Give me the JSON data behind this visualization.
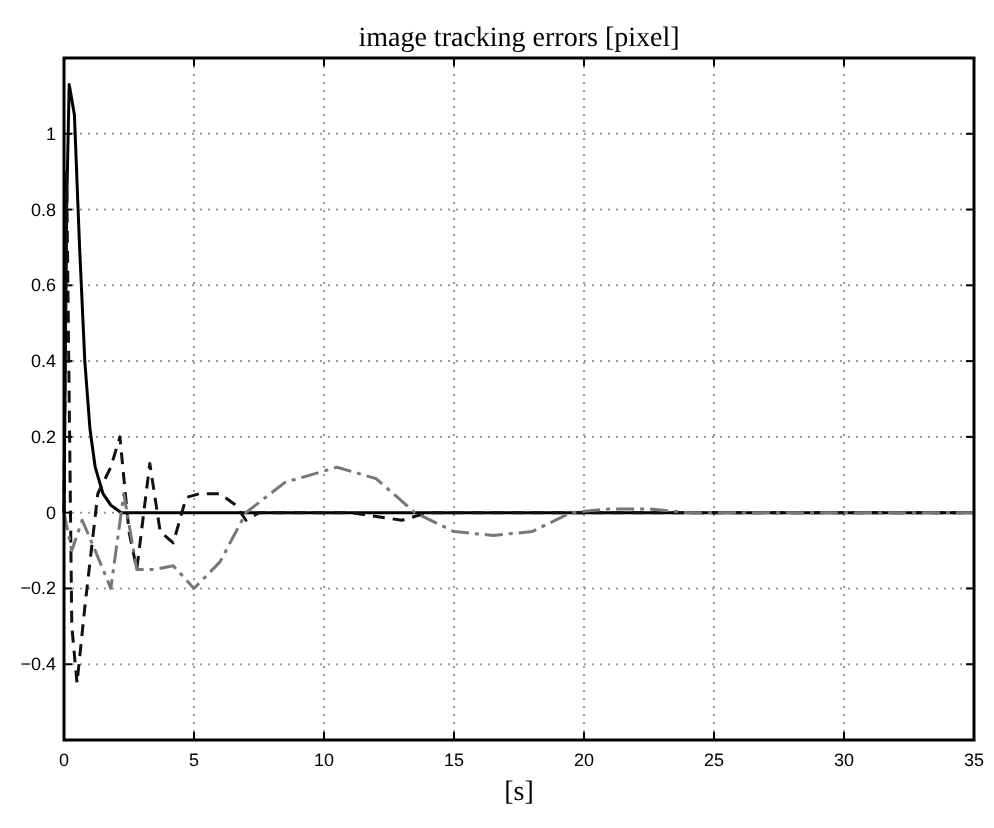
{
  "chart_data": {
    "type": "line",
    "title": "image tracking errors [pixel]",
    "xlabel": "[s]",
    "xlim": [
      0,
      35
    ],
    "xticks": [
      0,
      5,
      10,
      15,
      20,
      25,
      30,
      35
    ],
    "ylim": [
      -0.6,
      1.2
    ],
    "yticks": [
      {
        "value": -0.4,
        "label": "−0.4"
      },
      {
        "value": -0.2,
        "label": "−0.2"
      },
      0,
      0.2,
      0.4,
      0.6,
      0.8,
      1
    ],
    "grid": true,
    "series": [
      {
        "color": "#000000",
        "line_style": "solid",
        "x": [
          0,
          0.1,
          0.2,
          0.4,
          0.6,
          0.8,
          1.0,
          1.2,
          1.5,
          1.8,
          2.2,
          3,
          35
        ],
        "values": [
          0,
          0.8,
          1.13,
          1.05,
          0.7,
          0.4,
          0.22,
          0.12,
          0.05,
          0.02,
          0,
          0,
          0
        ]
      },
      {
        "color": "#111111",
        "line_style": "dashed",
        "x": [
          0,
          0.1,
          0.3,
          0.5,
          0.8,
          1.3,
          1.8,
          2.15,
          2.5,
          2.8,
          3.3,
          3.7,
          4.2,
          4.7,
          5.2,
          6,
          6.6,
          7,
          7.5,
          9,
          11,
          13,
          14,
          20,
          35
        ],
        "values": [
          0,
          0.9,
          -0.3,
          -0.45,
          -0.25,
          0.05,
          0.12,
          0.2,
          -0.05,
          -0.15,
          0.13,
          -0.05,
          -0.08,
          0.04,
          0.05,
          0.05,
          0.02,
          -0.02,
          0,
          0,
          0,
          -0.02,
          0,
          0,
          0
        ]
      },
      {
        "color": "#777777",
        "line_style": "dashdot",
        "x": [
          0,
          0.3,
          0.7,
          1.2,
          1.8,
          2.3,
          2.8,
          3.5,
          4.2,
          5,
          6,
          7,
          8.5,
          10.5,
          12,
          13.5,
          15,
          16.5,
          18,
          19.5,
          21,
          22.5,
          24,
          35
        ],
        "values": [
          0,
          -0.1,
          -0.02,
          -0.1,
          -0.2,
          0.05,
          -0.15,
          -0.15,
          -0.14,
          -0.2,
          -0.13,
          0,
          0.08,
          0.12,
          0.09,
          0,
          -0.05,
          -0.06,
          -0.05,
          0,
          0.01,
          0.01,
          0,
          0
        ]
      }
    ]
  }
}
